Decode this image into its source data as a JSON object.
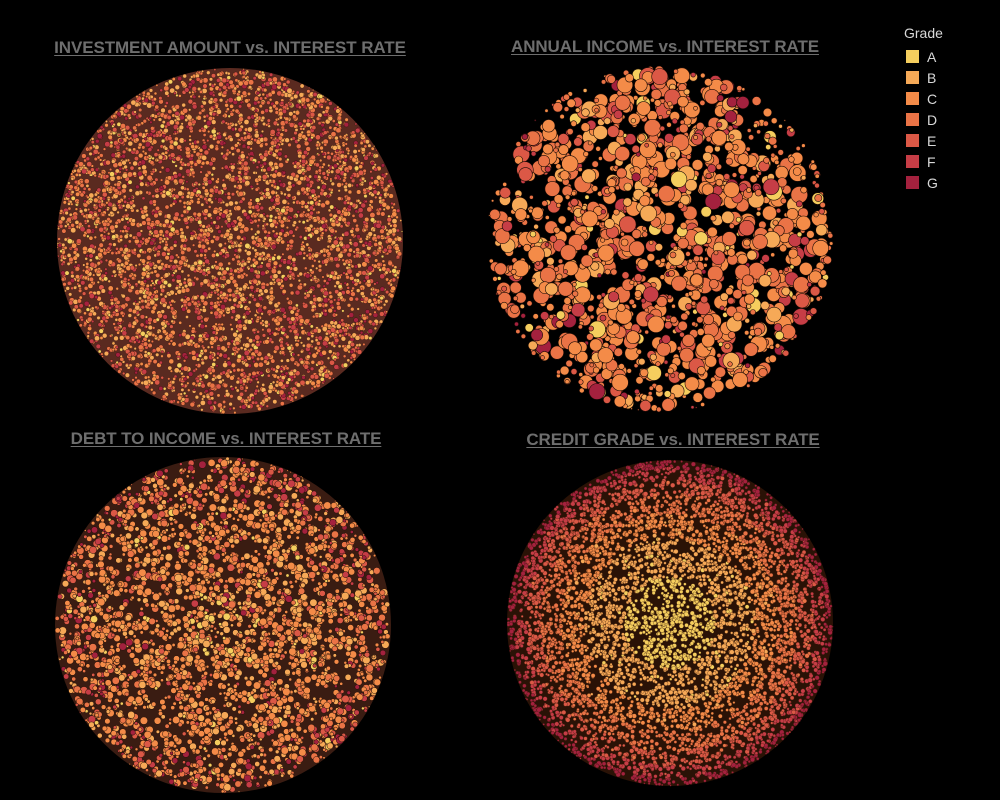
{
  "legend": {
    "title": "Grade",
    "items": [
      {
        "label": "A",
        "color": "#f5ce5e"
      },
      {
        "label": "B",
        "color": "#f6a957"
      },
      {
        "label": "C",
        "color": "#f48b48"
      },
      {
        "label": "D",
        "color": "#ea7346"
      },
      {
        "label": "E",
        "color": "#db5846"
      },
      {
        "label": "F",
        "color": "#c63d46"
      },
      {
        "label": "G",
        "color": "#a4213e"
      }
    ]
  },
  "chart_data": [
    {
      "type": "packed-bubble",
      "title": "INVESTMENT AMOUNT vs. INTEREST RATE",
      "color_by": "Grade",
      "layout": "tightly packed, all grades mixed, mostly B–D"
    },
    {
      "type": "packed-bubble",
      "title": "ANNUAL INCOME vs. INTEREST RATE",
      "color_by": "Grade",
      "layout": "larger bubbles, mostly C–D, mixed"
    },
    {
      "type": "packed-bubble",
      "title": "DEBT TO INCOME vs. INTEREST RATE",
      "color_by": "Grade",
      "layout": "darker dense core, C ring, F–G on outer edge"
    },
    {
      "type": "packed-bubble",
      "title": "CREDIT GRADE vs. INTEREST RATE",
      "color_by": "Grade",
      "layout": "concentric rings A (center) through G (outer)"
    }
  ]
}
